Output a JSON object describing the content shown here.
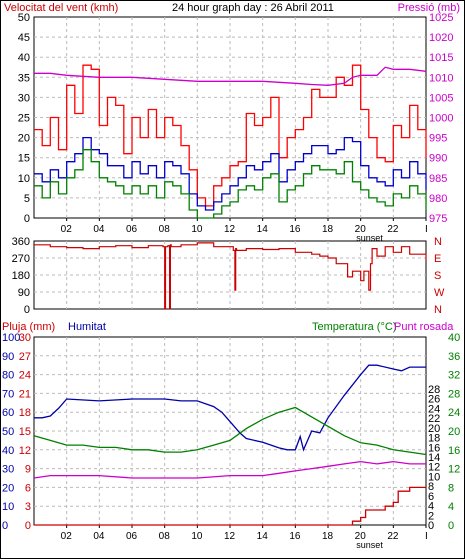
{
  "chart_data": [
    {
      "type": "line",
      "title": "24 hour graph day : 26 Abril 2011",
      "ylabel_left": "Velocitat del vent (kmh)",
      "ylabel_right": "Pressió (mb)",
      "x_ticks": [
        "02",
        "04",
        "06",
        "08",
        "10",
        "12",
        "14",
        "16",
        "18",
        "20",
        "22",
        "I"
      ],
      "x_range_hours": [
        0,
        24
      ],
      "annotation": "sunset",
      "annotation_hour": 20.1,
      "ylim_left": [
        0,
        50
      ],
      "yticks_left": [
        0,
        5,
        10,
        15,
        20,
        25,
        30,
        35,
        40,
        45,
        50
      ],
      "ylim_right": [
        975,
        1025
      ],
      "yticks_right": [
        975,
        980,
        985,
        990,
        995,
        1000,
        1005,
        1010,
        1015,
        1020,
        1025
      ],
      "grid": true,
      "series": [
        {
          "key": "gust",
          "axis": "left",
          "color": "#ff0000",
          "x": [
            0.0,
            0.5,
            1.0,
            1.5,
            2.0,
            2.5,
            3.0,
            3.5,
            4.0,
            4.5,
            5.0,
            5.5,
            6.0,
            6.5,
            7.0,
            7.5,
            8.0,
            8.5,
            9.0,
            9.5,
            10.0,
            10.5,
            11.0,
            11.5,
            12.0,
            12.5,
            13.0,
            13.5,
            14.0,
            14.5,
            15.0,
            15.5,
            16.0,
            16.5,
            17.0,
            17.5,
            18.0,
            18.5,
            19.0,
            19.5,
            20.0,
            20.5,
            21.0,
            21.5,
            22.0,
            22.5,
            23.0,
            23.5,
            24.0
          ],
          "y": [
            22,
            18,
            25,
            17,
            33,
            26,
            38,
            37,
            23,
            30,
            28,
            16,
            25,
            20,
            27,
            20,
            25,
            23,
            18,
            12,
            5,
            3,
            8,
            10,
            13,
            14,
            26,
            23,
            25,
            30,
            15,
            20,
            22,
            25,
            32,
            30,
            30,
            35,
            33,
            38,
            27,
            20,
            15,
            14,
            23,
            20,
            28,
            22,
            15
          ]
        },
        {
          "key": "avg_wind",
          "axis": "left",
          "color": "#0000cc",
          "x": [
            0.0,
            0.5,
            1.0,
            1.5,
            2.0,
            2.5,
            3.0,
            3.5,
            4.0,
            4.5,
            5.0,
            5.5,
            6.0,
            6.5,
            7.0,
            7.5,
            8.0,
            8.5,
            9.0,
            9.5,
            10.0,
            10.5,
            11.0,
            11.5,
            12.0,
            12.5,
            13.0,
            13.5,
            14.0,
            14.5,
            15.0,
            15.5,
            16.0,
            16.5,
            17.0,
            17.5,
            18.0,
            18.5,
            19.0,
            19.5,
            20.0,
            20.5,
            21.0,
            21.5,
            22.0,
            22.5,
            23.0,
            23.5,
            24.0
          ],
          "y": [
            11,
            9,
            12,
            10,
            14,
            16,
            20,
            17,
            16,
            13,
            13,
            10,
            14,
            11,
            13,
            10,
            14,
            13,
            11,
            6,
            3,
            2,
            4,
            6,
            8,
            10,
            13,
            12,
            14,
            16,
            9,
            12,
            14,
            16,
            18,
            18,
            16,
            17,
            20,
            19,
            13,
            10,
            9,
            8,
            12,
            10,
            14,
            11,
            7
          ]
        },
        {
          "key": "wind_min",
          "axis": "left",
          "color": "#008000",
          "x": [
            0.0,
            0.5,
            1.0,
            1.5,
            2.0,
            2.5,
            3.0,
            3.5,
            4.0,
            4.5,
            5.0,
            5.5,
            6.0,
            6.5,
            7.0,
            7.5,
            8.0,
            8.5,
            9.0,
            9.5,
            10.0,
            10.5,
            11.0,
            11.5,
            12.0,
            12.5,
            13.0,
            13.5,
            14.0,
            14.5,
            15.0,
            15.5,
            16.0,
            16.5,
            17.0,
            17.5,
            18.0,
            18.5,
            19.0,
            19.5,
            20.0,
            20.5,
            21.0,
            21.5,
            22.0,
            22.5,
            23.0,
            23.5,
            24.0
          ],
          "y": [
            8,
            5,
            9,
            6,
            10,
            12,
            17,
            14,
            10,
            9,
            8,
            6,
            8,
            6,
            8,
            5,
            9,
            8,
            6,
            2,
            0,
            0,
            1,
            3,
            4,
            7,
            8,
            7,
            10,
            11,
            4,
            7,
            8,
            11,
            13,
            12,
            12,
            11,
            14,
            9,
            7,
            5,
            4,
            3,
            6,
            5,
            8,
            6,
            2
          ]
        },
        {
          "key": "pressure",
          "axis": "right",
          "color": "#cc00cc",
          "x": [
            0,
            1,
            2,
            4,
            6,
            8,
            10,
            12,
            14,
            16,
            17,
            18,
            19,
            19.5,
            20,
            21,
            21.5,
            22,
            23,
            24
          ],
          "y": [
            1011.0,
            1011.0,
            1010.5,
            1010.0,
            1010.0,
            1009.5,
            1009.0,
            1009.0,
            1009.0,
            1008.5,
            1008.2,
            1008.0,
            1008.5,
            1010.0,
            1010.5,
            1010.5,
            1012.5,
            1012.0,
            1012.0,
            1011.5
          ]
        }
      ]
    },
    {
      "type": "line",
      "x_ticks": [
        "02",
        "04",
        "06",
        "08",
        "10",
        "12",
        "14",
        "16",
        "18",
        "20",
        "22",
        "I"
      ],
      "ylim": [
        0,
        360
      ],
      "yticks": [
        0,
        90,
        180,
        270,
        360
      ],
      "yticks_right": [
        "N",
        "W",
        "S",
        "E",
        "N"
      ],
      "series": [
        {
          "key": "wind_dir",
          "color": "#cc0000",
          "x": [
            0,
            1,
            2,
            3,
            4,
            5,
            6,
            7,
            7.9,
            8.0,
            8.05,
            8.2,
            8.3,
            8.35,
            8.4,
            9,
            10,
            11,
            12,
            12.2,
            12.3,
            12.35,
            12.4,
            13,
            14,
            15,
            16,
            17,
            17.5,
            18,
            18.5,
            19,
            19.2,
            19.5,
            20,
            20.2,
            20.5,
            20.6,
            20.7,
            21,
            21.5,
            22,
            22.5,
            23,
            24
          ],
          "y": [
            340,
            330,
            325,
            320,
            330,
            335,
            325,
            335,
            330,
            0,
            330,
            335,
            0,
            340,
            330,
            340,
            350,
            330,
            330,
            310,
            100,
            320,
            310,
            320,
            315,
            320,
            300,
            290,
            280,
            270,
            240,
            240,
            170,
            200,
            150,
            200,
            100,
            240,
            320,
            280,
            330,
            300,
            330,
            290,
            260
          ]
        }
      ]
    },
    {
      "type": "line",
      "ylabel_left_red": "Pluja (mm)",
      "ylabel_left_blue": "Humitat",
      "ylabel_right_green": "Temperatura (°C)",
      "ylabel_right_magenta": "Punt rosada",
      "x_ticks": [
        "02",
        "04",
        "06",
        "08",
        "10",
        "12",
        "14",
        "16",
        "18",
        "20",
        "22",
        "I"
      ],
      "annotation": "sunset",
      "annotation_hour": 20.1,
      "yticks_humidity": [
        0,
        10,
        20,
        30,
        40,
        50,
        60,
        70,
        80,
        90,
        100
      ],
      "yticks_rain": [
        0,
        3,
        6,
        9,
        12,
        15,
        18,
        21,
        24,
        27,
        30
      ],
      "yticks_temp": [
        0,
        4,
        8,
        12,
        16,
        20,
        24,
        28,
        32,
        36,
        40
      ],
      "yticks_temp_inner": [
        0,
        2,
        4,
        6,
        8,
        10,
        12,
        14,
        16,
        18,
        20,
        22,
        24,
        26,
        28
      ],
      "grid": true,
      "series": [
        {
          "key": "humidity",
          "axis": "humidity",
          "color": "#0000aa",
          "x": [
            0,
            0.5,
            1,
            1.5,
            2,
            4,
            6,
            8,
            9,
            10,
            11,
            11.5,
            12,
            12.3,
            12.6,
            13,
            14,
            15,
            15.5,
            16,
            16.3,
            16.5,
            17,
            17.5,
            18,
            19,
            20,
            20.5,
            21,
            22,
            22.5,
            23,
            23.3,
            24
          ],
          "y": [
            57,
            57,
            58,
            62,
            67,
            66,
            67,
            67,
            66,
            66,
            63,
            60,
            55,
            52,
            49,
            46,
            44,
            41,
            40,
            40,
            47,
            40,
            50,
            49,
            57,
            69,
            80,
            85,
            85,
            83,
            82,
            84,
            84,
            84
          ]
        },
        {
          "key": "temperature",
          "axis": "temp",
          "color": "#008000",
          "x": [
            0,
            1,
            2,
            3,
            4,
            5,
            6,
            7,
            8,
            9,
            10,
            11,
            12,
            13,
            14,
            15,
            15.5,
            16,
            16.5,
            17,
            18,
            19,
            20,
            21,
            22,
            23,
            24
          ],
          "y": [
            19,
            18,
            17,
            17,
            16.5,
            16.5,
            16,
            16,
            15.5,
            15.5,
            16,
            17,
            18,
            20.5,
            22.5,
            24,
            24.5,
            25,
            24,
            23,
            21,
            19,
            17.5,
            17,
            16,
            15.5,
            15
          ]
        },
        {
          "key": "dew_point",
          "axis": "temp",
          "color": "#cc00cc",
          "x": [
            0,
            1,
            2,
            4,
            6,
            8,
            10,
            12,
            14,
            15,
            16,
            17,
            18,
            19,
            20,
            21,
            22,
            23,
            24
          ],
          "y": [
            10,
            10.5,
            10.5,
            10.5,
            10,
            10,
            10,
            10.5,
            10.5,
            11,
            11.5,
            12,
            12.5,
            13,
            13.5,
            13,
            13.5,
            13,
            13
          ]
        },
        {
          "key": "rain",
          "axis": "rain",
          "color": "#cc0000",
          "x": [
            0,
            19.2,
            19.5,
            20,
            20.3,
            21.3,
            21.5,
            22,
            22.3,
            22.8,
            23,
            24
          ],
          "y": [
            0,
            0,
            0.6,
            1.2,
            2.4,
            2.4,
            3,
            3.6,
            5.4,
            5.4,
            6.0,
            6.0
          ]
        }
      ]
    }
  ]
}
